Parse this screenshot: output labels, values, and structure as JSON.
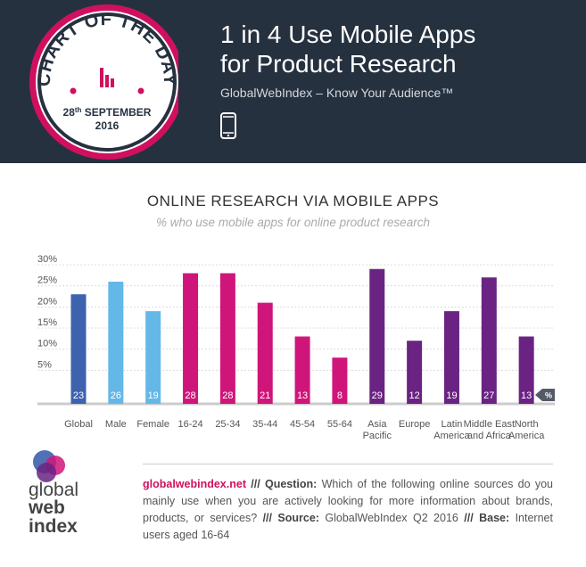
{
  "header": {
    "badge_top": "CHART OF THE DAY",
    "badge_date_day": "28",
    "badge_date_suffix": "th",
    "badge_date_month": "SEPTEMBER",
    "badge_date_year": "2016",
    "title_line1": "1 in 4 Use Mobile Apps",
    "title_line2": "for Product Research",
    "tagline": "GlobalWebIndex – Know Your Audience™",
    "icon": "smartphone-icon"
  },
  "chart_data": {
    "type": "bar",
    "title": "ONLINE RESEARCH VIA MOBILE APPS",
    "subtitle": "% who use mobile apps for online product research",
    "unit_badge": "%",
    "categories": [
      "Global",
      "Male",
      "Female",
      "16-24",
      "25-34",
      "35-44",
      "45-54",
      "55-64",
      "Asia Pacific",
      "Europe",
      "Latin America",
      "Middle East and Africa",
      "North America"
    ],
    "category_lines": [
      [
        "Global"
      ],
      [
        "Male"
      ],
      [
        "Female"
      ],
      [
        "16-24"
      ],
      [
        "25-34"
      ],
      [
        "35-44"
      ],
      [
        "45-54"
      ],
      [
        "55-64"
      ],
      [
        "Asia",
        "Pacific"
      ],
      [
        "Europe"
      ],
      [
        "Latin",
        "America"
      ],
      [
        "Middle East",
        "and Africa"
      ],
      [
        "North",
        "America"
      ]
    ],
    "values": [
      23,
      26,
      19,
      28,
      28,
      21,
      13,
      8,
      29,
      12,
      19,
      27,
      13
    ],
    "bar_colors": [
      "#3e62ae",
      "#63b8e8",
      "#63b8e8",
      "#d0157a",
      "#d0157a",
      "#d0157a",
      "#d0157a",
      "#d0157a",
      "#6a2382",
      "#6a2382",
      "#6a2382",
      "#6a2382",
      "#6a2382"
    ],
    "y_ticks": [
      "5%",
      "10%",
      "15%",
      "20%",
      "25%",
      "30%"
    ],
    "y_tick_values": [
      5,
      10,
      15,
      20,
      25,
      30
    ],
    "ylim": [
      0,
      30
    ],
    "grid": true,
    "legend": "none"
  },
  "footer": {
    "logo_line1": "global",
    "logo_line2": "web",
    "logo_line3": "index",
    "site": "globalwebindex.net",
    "sep1": " /// ",
    "question_label": "Question:",
    "question_text": " Which of the following online sources do you mainly use when you are actively looking for more information about brands, products, or services?",
    "sep2": " /// ",
    "source_label": "Source:",
    "source_text": " GlobalWebIndex Q2 2016",
    "sep3": " /// ",
    "base_label": "Base:",
    "base_text": " Internet users aged 16-64"
  },
  "colors": {
    "header_bg": "#263140",
    "accent_pink": "#d0105f",
    "global": "#3e62ae",
    "gender": "#63b8e8",
    "age": "#d0157a",
    "region": "#6a2382"
  }
}
